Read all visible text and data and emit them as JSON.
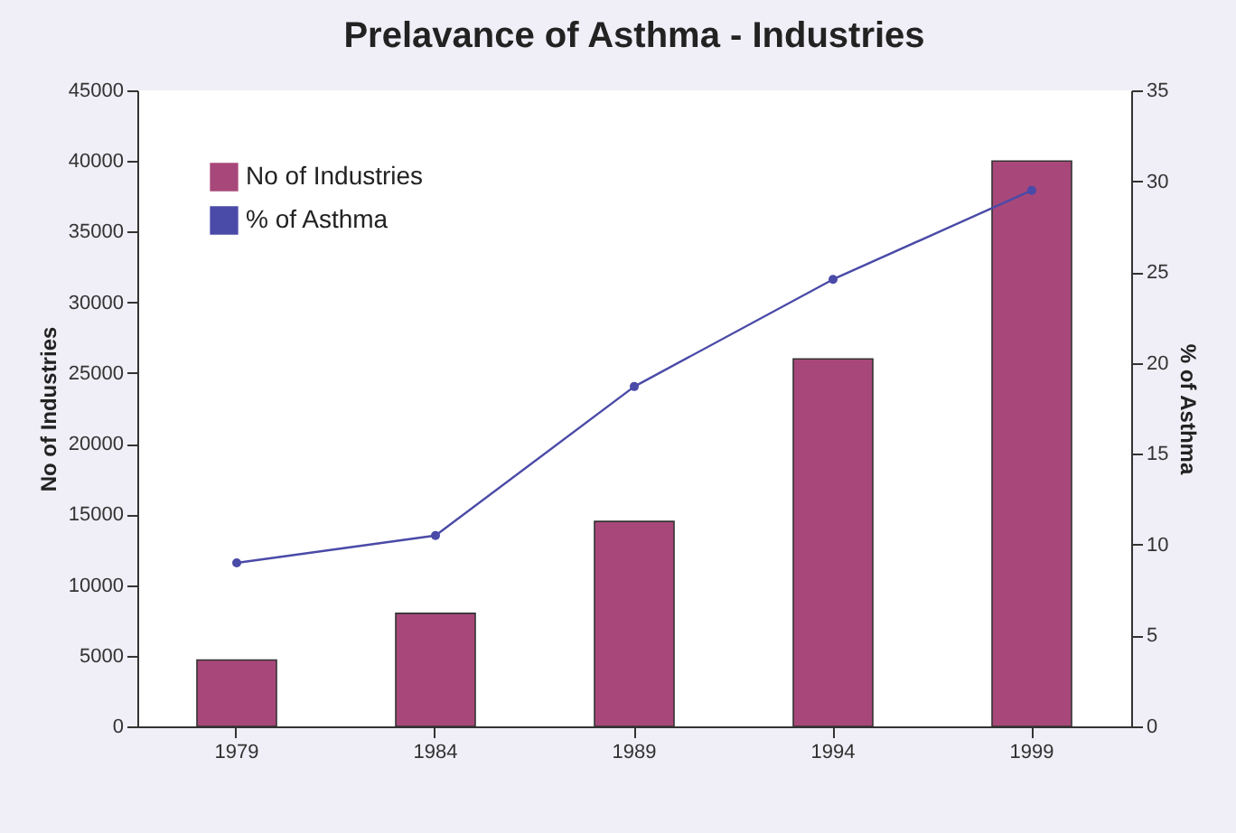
{
  "chart_data": {
    "type": "bar",
    "title": "Prelavance of Asthma - Industries",
    "categories": [
      "1979",
      "1984",
      "1989",
      "1994",
      "1999"
    ],
    "series": [
      {
        "name": "No of Industries",
        "color": "#a8487a",
        "values": [
          4700,
          8000,
          14500,
          26000,
          40000
        ]
      },
      {
        "name": "% of Asthma",
        "type": "line",
        "axis": "y2",
        "color": "#4a4aa8",
        "values": [
          9,
          10.5,
          18.7,
          24.6,
          29.5
        ]
      }
    ],
    "ylabel": "No of Industries",
    "y2label": "% of Asthma",
    "ylim": [
      0,
      45000
    ],
    "yticks": [
      0,
      5000,
      10000,
      15000,
      20000,
      25000,
      30000,
      35000,
      40000,
      45000
    ],
    "y2lim": [
      0,
      35
    ],
    "y2ticks": [
      0,
      5,
      10,
      15,
      20,
      25,
      30,
      35
    ],
    "grid": false,
    "legend": "top left",
    "marker": "circle",
    "line_style": "solid"
  }
}
